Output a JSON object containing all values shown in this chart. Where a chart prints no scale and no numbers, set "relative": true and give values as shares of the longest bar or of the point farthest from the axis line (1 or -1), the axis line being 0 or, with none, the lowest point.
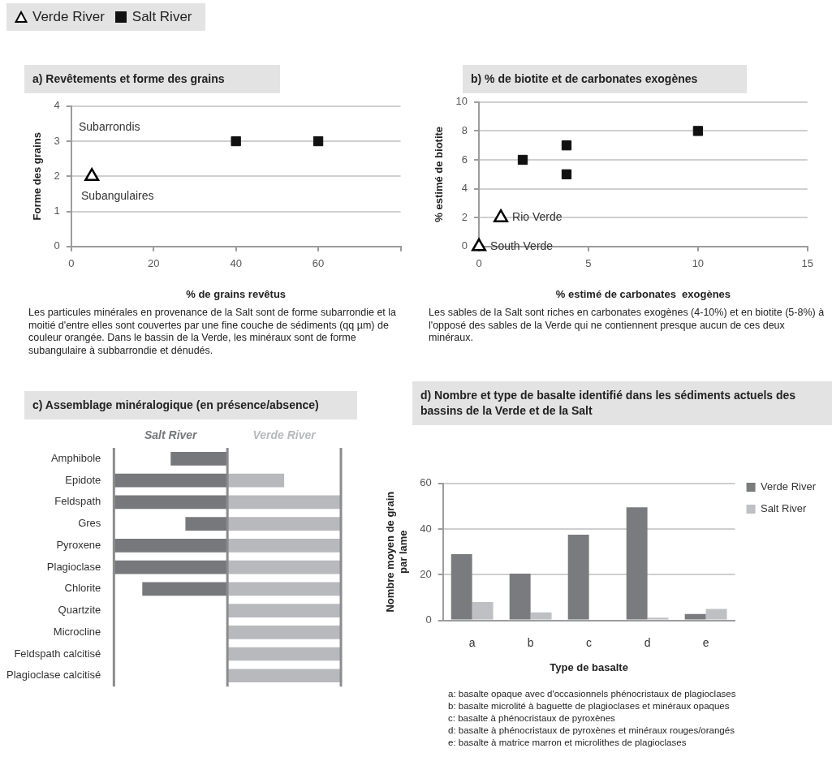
{
  "chart_data": [
    {
      "type": "scatter",
      "title": "a) Revêtements et forme des grains",
      "xlabel": "% de grains revêtus",
      "ylabel": "Forme des grains",
      "xlim": [
        0,
        80
      ],
      "xticks": [
        0,
        20,
        40,
        60,
        {
          "value": 80,
          "label": null
        }
      ],
      "ylim": [
        0,
        4
      ],
      "yticks": [
        0,
        1,
        2,
        3,
        4
      ],
      "grid": "y",
      "legend": "top",
      "series": [
        {
          "name": "Verde River",
          "color": "#000000",
          "marker": "triangle",
          "x": [
            5
          ],
          "values": [
            2
          ]
        },
        {
          "name": "Salt River",
          "color": "#111111",
          "marker": "square",
          "x": [
            40,
            60
          ],
          "values": [
            3,
            3
          ]
        }
      ],
      "annotations": [
        "Subarrondis",
        "Subangulaires",
        "Les particules minérales en provenance de la Salt sont de forme subarrondie et la moitié d'entre elles sont couvertes par une fine couche de sédiments (qq µm) de couleur orangée. Dans le bassin de la Verde, les minéraux sont de forme subangulaire à subbarrondie et dénudés."
      ]
    },
    {
      "type": "scatter",
      "title": "b) % de biotite et de carbonates exogènes",
      "xlabel": "% estimé de carbonates  exogènes",
      "ylabel": "% estimé de biotite",
      "xlim": [
        0,
        15
      ],
      "xticks": [
        0,
        5,
        10,
        15
      ],
      "ylim": [
        0,
        10
      ],
      "yticks": [
        0,
        2,
        4,
        6,
        8,
        10
      ],
      "grid": "y",
      "series": [
        {
          "color": "#000000",
          "marker": "triangle",
          "x": [
            1,
            0
          ],
          "values": [
            2,
            0
          ]
        },
        {
          "color": "#111111",
          "marker": "square",
          "x": [
            2,
            4,
            4,
            10
          ],
          "values": [
            6,
            7,
            5,
            8
          ]
        }
      ],
      "annotations": [
        {
          "text": "Rio Verde",
          "x": 1,
          "y": 2
        },
        {
          "text": "South Verde",
          "x": 0,
          "y": 0
        },
        "Les sables de la Salt sont riches en carbonates exogènes (4-10%) et en biotite  (5-8%) à l'opposé des sables de la Verde qui ne contiennent presque aucun de ces deux minéraux."
      ]
    },
    {
      "type": "bar",
      "orientation": "horizontal",
      "stacked": true,
      "relative": true,
      "title": "c) Assemblage minéralogique (en présence/absence)",
      "grid": false,
      "categories": [
        "Amphibole",
        "Epidote",
        "Feldspath",
        "Gres",
        "Pyroxene",
        "Plagioclase",
        "Chlorite",
        "Quartzite",
        "Microcline",
        "Feldspath calcitisé",
        "Plagioclase calcitisé"
      ],
      "series": [
        {
          "name": "Salt River",
          "color": "#77787c",
          "values": [
            -0.5,
            -1,
            -1,
            -0.37,
            -1,
            -1,
            -0.75,
            null,
            null,
            null,
            null
          ]
        },
        {
          "name": "Verde River",
          "color": "#b8b9bd",
          "values": [
            null,
            0.5,
            1,
            1,
            1,
            1,
            1,
            1,
            1,
            1,
            1
          ]
        }
      ]
    },
    {
      "type": "bar",
      "title": "d) Nombre et type de basalte identifié dans les sédiments actuels des bassins de la Verde et de la Salt",
      "xlabel": "Type de basalte",
      "ylabel": "Nombre moyen de grain par lame",
      "ylim": [
        0,
        60
      ],
      "yticks": [
        0,
        20,
        40,
        60
      ],
      "grid": "y",
      "legend": "right",
      "categories": [
        "a",
        "b",
        "c",
        "d",
        "e"
      ],
      "series": [
        {
          "name": "Verde River",
          "color": "#7a7b7f",
          "values": [
            29,
            20.5,
            37.5,
            49.5,
            2.8
          ]
        },
        {
          "name": "Salt River",
          "color": "#bfc0c4",
          "values": [
            8,
            3.5,
            null,
            1.2,
            5
          ]
        }
      ],
      "annotations": [
        "a: basalte opaque avec d'occasionnels phénocristaux de plagioclases",
        "b: basalte microlité à baguette de plagioclases et minéraux opaques",
        "c: basalte à phénocristaux de pyroxènes",
        "d: basalte à phénocristaux de pyroxènes et minéraux rouges/orangés",
        "e: basalte à matrice marron et microlithes de plagioclases"
      ]
    }
  ]
}
